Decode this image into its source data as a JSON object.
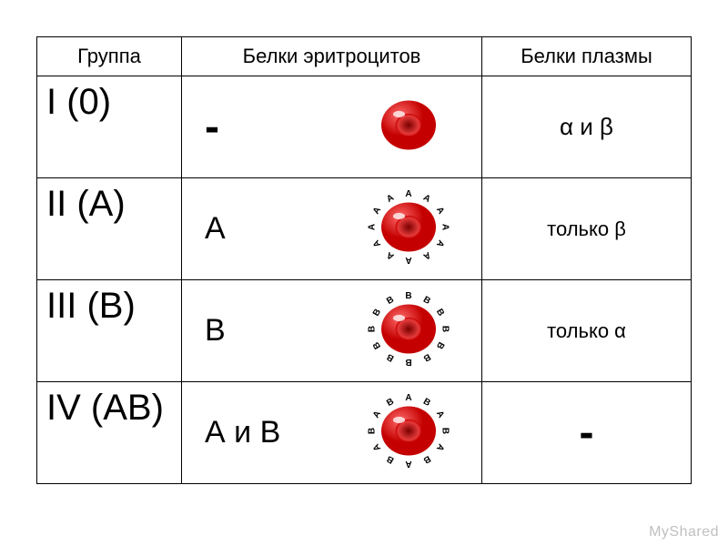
{
  "table": {
    "headers": {
      "group": "Группа",
      "erythrocytes": "Белки эритроцитов",
      "plasma": "Белки плазмы"
    },
    "rows": [
      {
        "group": "I (0)",
        "eryth_label": "-",
        "eryth_label_style": "eryth-big",
        "plasma_label": "α и β",
        "plasma_style": "",
        "cell": {
          "antigens": [],
          "radius": 30,
          "marker_radius": 40
        }
      },
      {
        "group": "II (A)",
        "eryth_label": "А",
        "eryth_label_style": "",
        "plasma_label": "только β",
        "plasma_style": "plasma-small",
        "cell": {
          "antigens": [
            "A",
            "A",
            "A",
            "A",
            "A",
            "A",
            "A",
            "A",
            "A",
            "A",
            "A",
            "A"
          ],
          "radius": 30,
          "marker_radius": 40
        }
      },
      {
        "group": "III (B)",
        "eryth_label": "В",
        "eryth_label_style": "",
        "plasma_label": "только α",
        "plasma_style": "plasma-small",
        "cell": {
          "antigens": [
            "B",
            "B",
            "B",
            "B",
            "B",
            "B",
            "B",
            "B",
            "B",
            "B",
            "B",
            "B"
          ],
          "radius": 30,
          "marker_radius": 40
        }
      },
      {
        "group": "IV (AB)",
        "eryth_label": "А и В",
        "eryth_label_style": "",
        "plasma_label": "-",
        "plasma_style": "plasma-big",
        "cell": {
          "antigens": [
            "A",
            "B",
            "A",
            "B",
            "A",
            "B",
            "A",
            "B",
            "A",
            "B",
            "A",
            "B"
          ],
          "radius": 30,
          "marker_radius": 40
        }
      }
    ]
  },
  "style": {
    "cell_colors": {
      "outer_light": "#ff6a6a",
      "outer_dark": "#c40000",
      "inner_dark": "#7a0000",
      "inner_light": "#e63a3a",
      "highlight": "#ffffff"
    },
    "antigen_font_size": 10,
    "antigen_color": "#000000",
    "svg_size": 100,
    "border_color": "#000000",
    "background": "#ffffff",
    "group_font_size": 40,
    "header_font_size": 22,
    "eryth_font_size": 34,
    "plasma_font_size": 26
  },
  "watermark": "MyShared"
}
